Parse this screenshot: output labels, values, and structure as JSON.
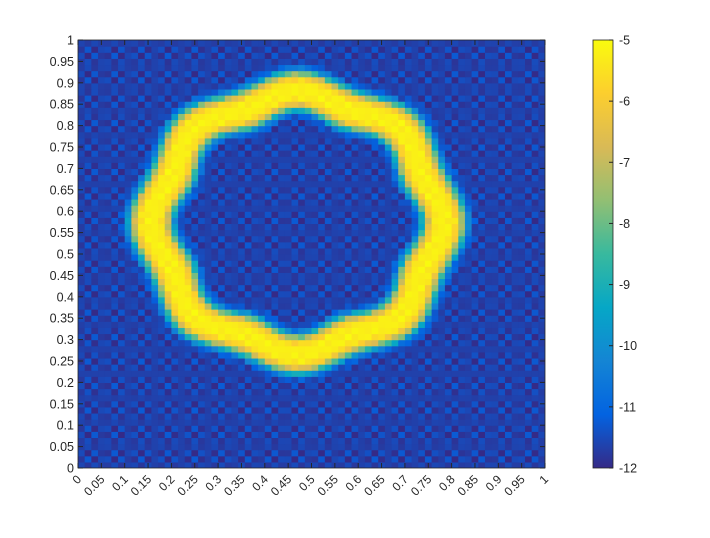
{
  "chart_data": {
    "type": "heatmap",
    "title": "",
    "xlabel": "",
    "ylabel": "",
    "xlim": [
      0,
      1
    ],
    "ylim": [
      0,
      1
    ],
    "x_tick_labels": [
      "0",
      "0.05",
      "0.1",
      "0.15",
      "0.2",
      "0.25",
      "0.3",
      "0.35",
      "0.4",
      "0.45",
      "0.5",
      "0.55",
      "0.6",
      "0.65",
      "0.7",
      "0.75",
      "0.8",
      "0.85",
      "0.9",
      "0.95",
      "1"
    ],
    "y_tick_labels": [
      "0",
      "0.05",
      "0.1",
      "0.15",
      "0.2",
      "0.25",
      "0.3",
      "0.35",
      "0.4",
      "0.45",
      "0.5",
      "0.55",
      "0.6",
      "0.65",
      "0.7",
      "0.75",
      "0.8",
      "0.85",
      "0.9",
      "0.95",
      "1"
    ],
    "colorbar": {
      "colormap": "parula",
      "range": [
        -12,
        -5
      ],
      "tick_labels": [
        "-5",
        "-6",
        "-7",
        "-8",
        "-9",
        "-10",
        "-11",
        "-12"
      ],
      "stops": [
        "#352a87",
        "#0363e1",
        "#1485d4",
        "#06a7c6",
        "#38b99e",
        "#92bf73",
        "#d9ba56",
        "#fcce2e",
        "#f9fb0e"
      ]
    },
    "field": {
      "description_values": "ring-shaped band of high values near -5 surrounding a low interior; background near -12",
      "background_value": -12,
      "ring_value": -5,
      "ring_center": [
        0.47,
        0.575
      ],
      "ring_radius": 0.305,
      "ring_half_width": 0.048,
      "grid_period": 0.0385,
      "ring_segments": [
        {
          "x": [
            0.36,
            0.56
          ],
          "y": [
            0.84,
            0.94
          ],
          "label": "top"
        },
        {
          "x": [
            0.36,
            0.56
          ],
          "y": [
            0.21,
            0.27
          ],
          "label": "bottom"
        },
        {
          "x": [
            0.06,
            0.15
          ],
          "y": [
            0.41,
            0.72
          ],
          "label": "left"
        },
        {
          "x": [
            0.76,
            0.85
          ],
          "y": [
            0.41,
            0.72
          ],
          "label": "right"
        }
      ]
    },
    "grid": false,
    "legend": "none"
  }
}
